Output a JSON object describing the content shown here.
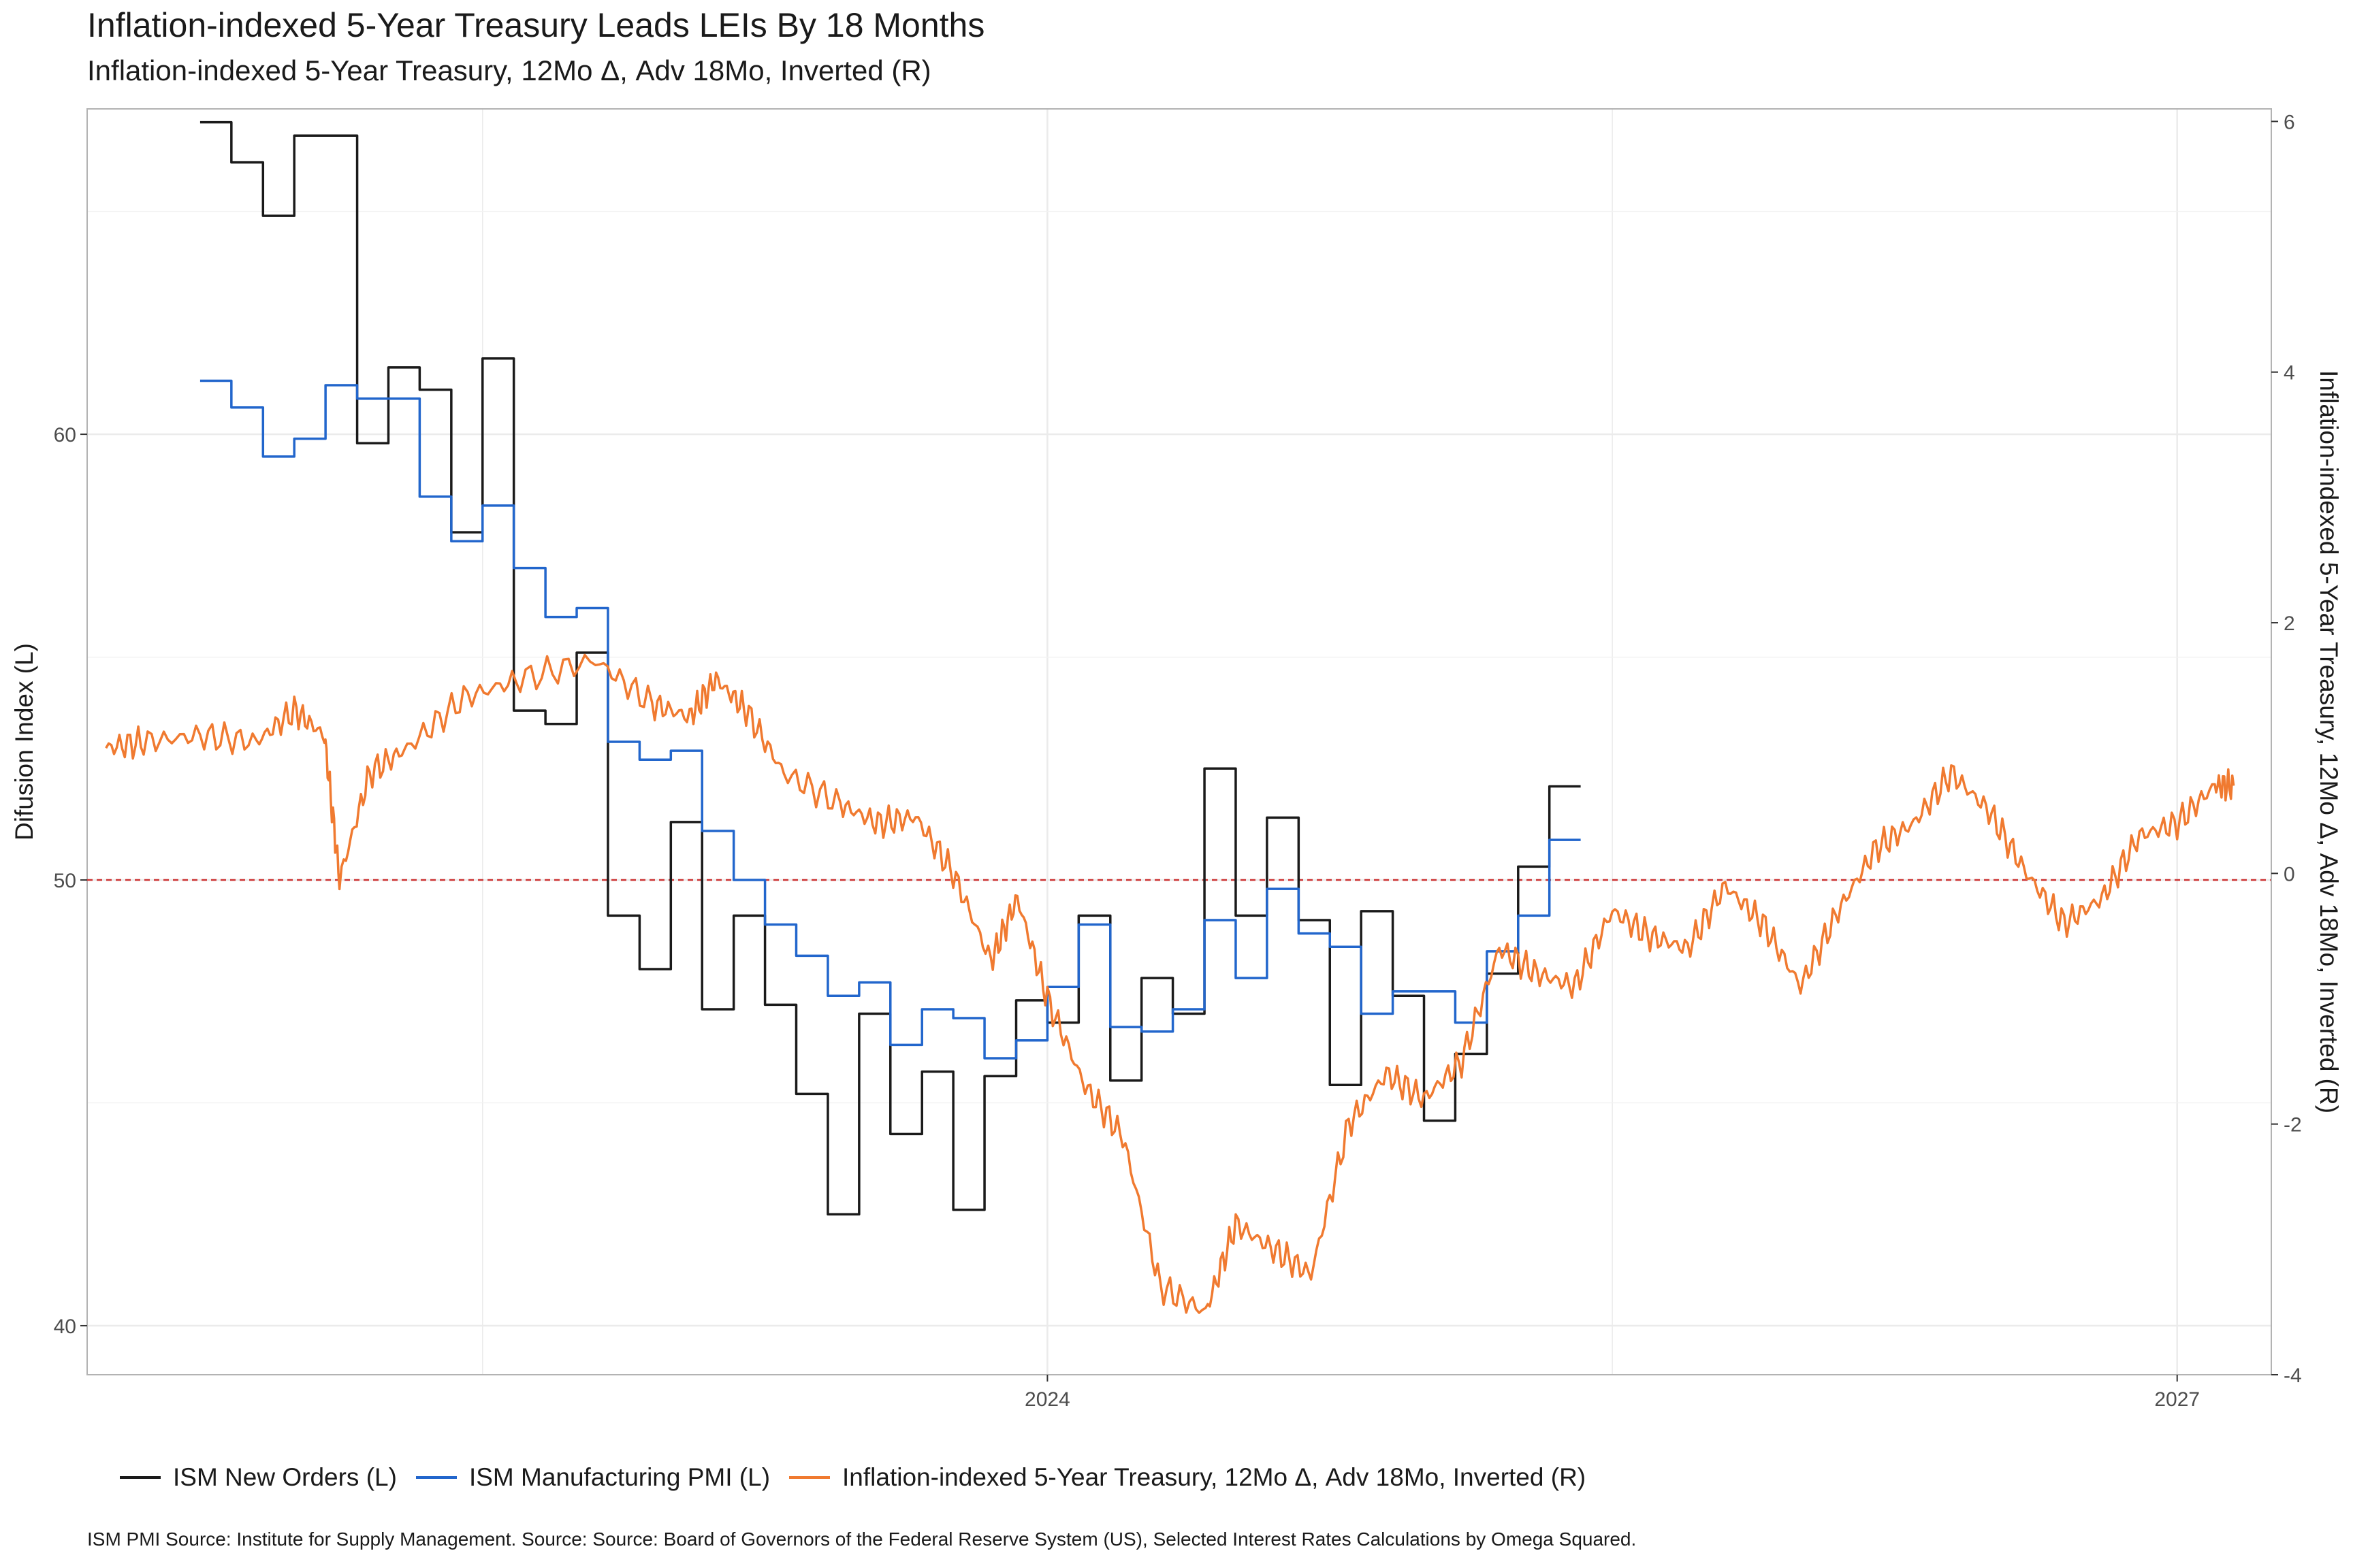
{
  "title": "Inflation-indexed 5-Year Treasury  Leads LEIs By  18  Months",
  "subtitle": "Inflation-indexed 5-Year Treasury, 12Mo Δ, Adv 18Mo, Inverted (R)",
  "caption": "ISM PMI Source: Institute for Supply Management. Source: Source: Board of Governors of the Federal Reserve System (US), Selected Interest Rates Calculations by Omega Squared.",
  "legend": [
    {
      "label": "ISM New Orders (L)",
      "color": "#1a1a1a"
    },
    {
      "label": "ISM Manufacturing PMI (L)",
      "color": "#2266cc"
    },
    {
      "label": "Inflation-indexed 5-Year Treasury, 12Mo Δ, Adv 18Mo, Inverted (R)",
      "color": "#f07a30"
    }
  ],
  "chart_data": {
    "type": "line",
    "ylabel_left": "Difusion Index (L)",
    "ylabel_right": "Inflation-indexed 5-Year Treasury, 12Mo Δ, Adv 18Mo, Inverted (R)",
    "x_ticks": [
      {
        "label": "2024",
        "value": 2024.0
      },
      {
        "label": "2027",
        "value": 2027.0
      }
    ],
    "x_range": [
      2021.45,
      2027.25
    ],
    "y_left_ticks": [
      40,
      50,
      60
    ],
    "y_left_range": [
      38.9,
      67.3
    ],
    "y_right_ticks": [
      -4,
      -2,
      0,
      2,
      4,
      6
    ],
    "y_right_range": [
      -4.0,
      6.1
    ],
    "reference_line": {
      "axis": "left",
      "value": 50,
      "style": "dashed",
      "color": "#cc3333"
    },
    "grid": true,
    "legend_position": "bottom",
    "series": [
      {
        "name": "ISM New Orders (L)",
        "axis": "left",
        "step": true,
        "color": "#1a1a1a",
        "x": [
          2021.75,
          2021.833,
          2021.917,
          2022.0,
          2022.083,
          2022.167,
          2022.25,
          2022.333,
          2022.417,
          2022.5,
          2022.583,
          2022.667,
          2022.75,
          2022.833,
          2022.917,
          2023.0,
          2023.083,
          2023.167,
          2023.25,
          2023.333,
          2023.417,
          2023.5,
          2023.583,
          2023.667,
          2023.75,
          2023.833,
          2023.917,
          2024.0,
          2024.083,
          2024.167,
          2024.25,
          2024.333,
          2024.417,
          2024.5,
          2024.583,
          2024.667,
          2024.75,
          2024.833,
          2024.917,
          2025.0,
          2025.083,
          2025.167,
          2025.25,
          2025.333
        ],
        "values": [
          67.0,
          66.1,
          64.9,
          66.7,
          66.7,
          59.8,
          61.5,
          61.0,
          57.8,
          61.7,
          53.8,
          53.5,
          55.1,
          49.2,
          48.0,
          51.3,
          47.1,
          49.2,
          47.2,
          45.2,
          42.5,
          47.0,
          44.3,
          45.7,
          42.6,
          45.6,
          47.3,
          46.8,
          49.2,
          45.5,
          47.8,
          47.0,
          52.5,
          49.2,
          51.4,
          49.1,
          45.4,
          49.3,
          47.4,
          44.6,
          46.1,
          47.9,
          50.3,
          52.1
        ]
      },
      {
        "name": "ISM Manufacturing PMI (L)",
        "axis": "left",
        "step": true,
        "color": "#2266cc",
        "x": [
          2021.75,
          2021.833,
          2021.917,
          2022.0,
          2022.083,
          2022.167,
          2022.25,
          2022.333,
          2022.417,
          2022.5,
          2022.583,
          2022.667,
          2022.75,
          2022.833,
          2022.917,
          2023.0,
          2023.083,
          2023.167,
          2023.25,
          2023.333,
          2023.417,
          2023.5,
          2023.583,
          2023.667,
          2023.75,
          2023.833,
          2023.917,
          2024.0,
          2024.083,
          2024.167,
          2024.25,
          2024.333,
          2024.417,
          2024.5,
          2024.583,
          2024.667,
          2024.75,
          2024.833,
          2024.917,
          2025.0,
          2025.083,
          2025.167,
          2025.25,
          2025.333
        ],
        "values": [
          61.2,
          60.6,
          59.5,
          59.9,
          61.1,
          60.8,
          60.8,
          58.6,
          57.6,
          58.4,
          57.0,
          55.9,
          56.1,
          53.1,
          52.7,
          52.9,
          51.1,
          50.0,
          49.0,
          48.3,
          47.4,
          47.7,
          46.3,
          47.1,
          46.9,
          46.0,
          46.4,
          47.6,
          49.0,
          46.7,
          46.6,
          47.1,
          49.1,
          47.8,
          49.8,
          48.8,
          48.5,
          47.0,
          47.5,
          47.5,
          46.8,
          48.4,
          49.2,
          50.9
        ]
      },
      {
        "name": "Inflation-indexed 5-Year Treasury, 12Mo Δ, Adv 18Mo, Inverted (R)",
        "axis": "right",
        "step": false,
        "color": "#f07a30",
        "x": [
          2021.5,
          2021.6,
          2021.75,
          2021.9,
          2022.0,
          2022.08,
          2022.12,
          2022.2,
          2022.3,
          2022.45,
          2022.6,
          2022.8,
          2022.95,
          2023.05,
          2023.12,
          2023.2,
          2023.3,
          2023.45,
          2023.55,
          2023.65,
          2023.75,
          2023.85,
          2023.92,
          2024.0,
          2024.1,
          2024.2,
          2024.3,
          2024.42,
          2024.5,
          2024.6,
          2024.7,
          2024.8,
          2024.9,
          2025.0,
          2025.1,
          2025.2,
          2025.3,
          2025.4,
          2025.5,
          2025.6,
          2025.7,
          2025.8,
          2025.9,
          2026.0,
          2026.1,
          2026.2,
          2026.3,
          2026.4,
          2026.5,
          2026.6,
          2026.7,
          2026.8,
          2026.9,
          2027.0,
          2027.1,
          2027.15
        ],
        "values": [
          1.0,
          1.05,
          1.1,
          1.05,
          1.3,
          1.1,
          -0.05,
          0.8,
          1.0,
          1.4,
          1.55,
          1.7,
          1.35,
          1.25,
          1.55,
          1.3,
          0.8,
          0.55,
          0.4,
          0.45,
          0.0,
          -0.7,
          -0.2,
          -1.0,
          -1.7,
          -2.1,
          -3.3,
          -3.5,
          -2.8,
          -3.0,
          -3.2,
          -2.0,
          -1.6,
          -1.8,
          -1.5,
          -0.6,
          -0.8,
          -0.9,
          -0.3,
          -0.5,
          -0.6,
          -0.1,
          -0.4,
          -0.9,
          -0.3,
          0.2,
          0.4,
          0.8,
          0.5,
          0.0,
          -0.4,
          -0.2,
          0.3,
          0.4,
          0.7,
          0.7
        ]
      }
    ]
  }
}
